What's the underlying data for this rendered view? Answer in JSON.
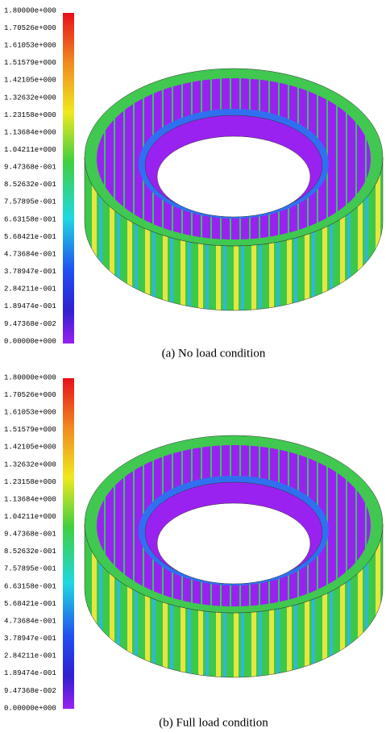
{
  "panels": [
    {
      "colorbar_labels": [
        "1.80000e+000",
        "1.70526e+000",
        "1.61053e+000",
        "1.51579e+000",
        "1.42105e+000",
        "1.32632e+000",
        "1.23158e+000",
        "1.13684e+000",
        "1.04211e+000",
        "9.47368e-001",
        "8.52632e-001",
        "7.57895e-001",
        "6.63158e-001",
        "5.68421e-001",
        "4.73684e-001",
        "3.78947e-001",
        "2.84211e-001",
        "1.89474e-001",
        "9.47368e-002",
        "0.00000e+000"
      ],
      "caption": "(a)  No load condition"
    },
    {
      "colorbar_labels": [
        "1.80000e+000",
        "1.70526e+000",
        "1.61053e+000",
        "1.51579e+000",
        "1.42105e+000",
        "1.32632e+000",
        "1.23158e+000",
        "1.13684e+000",
        "1.04211e+000",
        "9.47368e-001",
        "8.52632e-001",
        "7.57895e-001",
        "6.63158e-001",
        "5.68421e-001",
        "4.73684e-001",
        "3.78947e-001",
        "2.84211e-001",
        "1.89474e-001",
        "9.47368e-002",
        "0.00000e+000"
      ],
      "caption": "(b)  Full load condition"
    }
  ]
}
